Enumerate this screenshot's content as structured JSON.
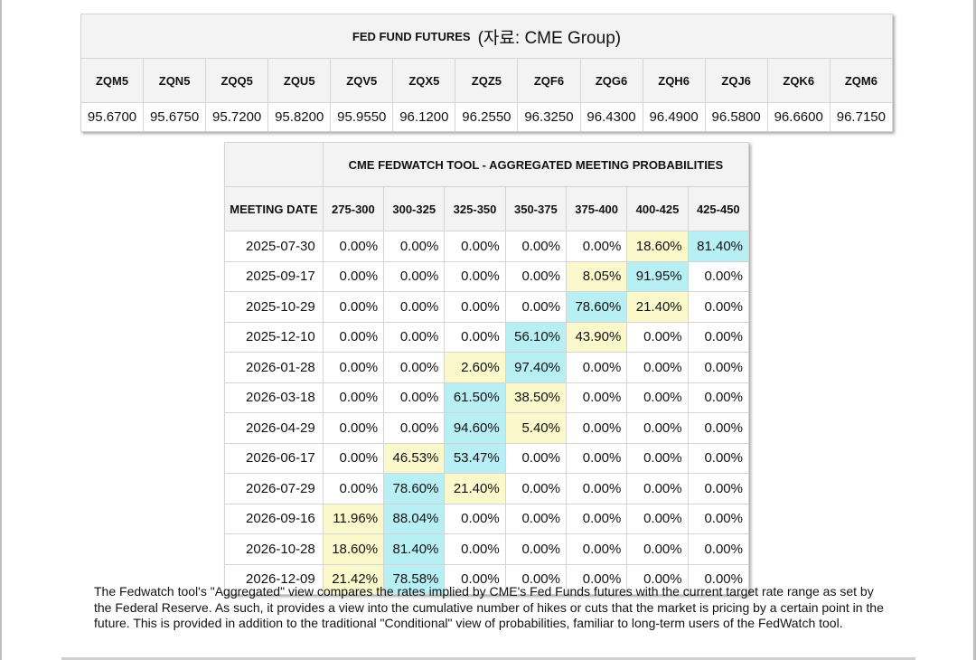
{
  "futures": {
    "title": "FED FUND FUTURES",
    "source": "(자료: CME Group)",
    "contracts": [
      "ZQM5",
      "ZQN5",
      "ZQQ5",
      "ZQU5",
      "ZQV5",
      "ZQX5",
      "ZQZ5",
      "ZQF6",
      "ZQG6",
      "ZQH6",
      "ZQJ6",
      "ZQK6",
      "ZQM6"
    ],
    "prices": [
      "95.6700",
      "95.6750",
      "95.7200",
      "95.8200",
      "95.9550",
      "96.1200",
      "96.2550",
      "96.3250",
      "96.4300",
      "96.4900",
      "96.5800",
      "96.6600",
      "96.7150"
    ]
  },
  "fedwatch": {
    "title": "CME FEDWATCH TOOL - AGGREGATED MEETING PROBABILITIES",
    "date_header": "MEETING DATE",
    "buckets": [
      "275-300",
      "300-325",
      "325-350",
      "350-375",
      "375-400",
      "400-425",
      "425-450"
    ],
    "rows": [
      {
        "date": "2025-07-30",
        "values": [
          "0.00%",
          "0.00%",
          "0.00%",
          "0.00%",
          "0.00%",
          "18.60%",
          "81.40%"
        ]
      },
      {
        "date": "2025-09-17",
        "values": [
          "0.00%",
          "0.00%",
          "0.00%",
          "0.00%",
          "8.05%",
          "91.95%",
          "0.00%"
        ]
      },
      {
        "date": "2025-10-29",
        "values": [
          "0.00%",
          "0.00%",
          "0.00%",
          "0.00%",
          "78.60%",
          "21.40%",
          "0.00%"
        ]
      },
      {
        "date": "2025-12-10",
        "values": [
          "0.00%",
          "0.00%",
          "0.00%",
          "56.10%",
          "43.90%",
          "0.00%",
          "0.00%"
        ]
      },
      {
        "date": "2026-01-28",
        "values": [
          "0.00%",
          "0.00%",
          "2.60%",
          "97.40%",
          "0.00%",
          "0.00%",
          "0.00%"
        ]
      },
      {
        "date": "2026-03-18",
        "values": [
          "0.00%",
          "0.00%",
          "61.50%",
          "38.50%",
          "0.00%",
          "0.00%",
          "0.00%"
        ]
      },
      {
        "date": "2026-04-29",
        "values": [
          "0.00%",
          "0.00%",
          "94.60%",
          "5.40%",
          "0.00%",
          "0.00%",
          "0.00%"
        ]
      },
      {
        "date": "2026-06-17",
        "values": [
          "0.00%",
          "46.53%",
          "53.47%",
          "0.00%",
          "0.00%",
          "0.00%",
          "0.00%"
        ]
      },
      {
        "date": "2026-07-29",
        "values": [
          "0.00%",
          "78.60%",
          "21.40%",
          "0.00%",
          "0.00%",
          "0.00%",
          "0.00%"
        ]
      },
      {
        "date": "2026-09-16",
        "values": [
          "11.96%",
          "88.04%",
          "0.00%",
          "0.00%",
          "0.00%",
          "0.00%",
          "0.00%"
        ]
      },
      {
        "date": "2026-10-28",
        "values": [
          "18.60%",
          "81.40%",
          "0.00%",
          "0.00%",
          "0.00%",
          "0.00%",
          "0.00%"
        ]
      },
      {
        "date": "2026-12-09",
        "values": [
          "21.42%",
          "78.58%",
          "0.00%",
          "0.00%",
          "0.00%",
          "0.00%",
          "0.00%"
        ]
      }
    ],
    "colors": {
      "highest": "#b8eff4",
      "second": "#fbf8cc"
    }
  },
  "note": "The Fedwatch tool's \"Aggregated\" view compares the rates implied by CME's Fed Funds futures with the current target rate range as set by the Federal Reserve. As such, it provides a view into the cumulative number of hikes or cuts that the market is pricing by a certain point in the future. This is provided in addition to the traditional \"Conditional\" view of probabilities, familiar to long-term users of the FedWatch tool."
}
